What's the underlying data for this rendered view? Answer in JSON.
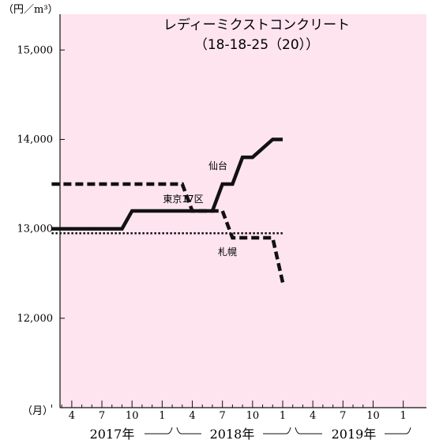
{
  "chart_data": {
    "type": "line",
    "title": "レディーミクストコンクリート",
    "subtitle": "（18-18-25（20））",
    "ylabel": "（円／m³）",
    "xlabel": "（月）",
    "ylim": [
      11000,
      15400
    ],
    "yticks": [
      12000,
      13000,
      14000,
      15000
    ],
    "ytick_labels": [
      "12,000",
      "13,000",
      "14,000",
      "15,000"
    ],
    "xlim": [
      1,
      33.4
    ],
    "x_month_ticks": [
      {
        "x": 4,
        "label": "4"
      },
      {
        "x": 7,
        "label": "7"
      },
      {
        "x": 10,
        "label": "10"
      },
      {
        "x": 13,
        "label": "1"
      },
      {
        "x": 16,
        "label": "4"
      },
      {
        "x": 19,
        "label": "7"
      },
      {
        "x": 22,
        "label": "10"
      },
      {
        "x": 25,
        "label": "1"
      },
      {
        "x": 28,
        "label": "4"
      },
      {
        "x": 31,
        "label": "7"
      },
      {
        "x": 34,
        "label": "10"
      },
      {
        "x": 37,
        "label": "1"
      }
    ],
    "x_minor_ticks": [
      2,
      3,
      5,
      6,
      8,
      9,
      11,
      12,
      14,
      15,
      17,
      18,
      20,
      21,
      23,
      24,
      26,
      27,
      29,
      30,
      32,
      33
    ],
    "year_labels": [
      {
        "label": "2017年",
        "from": 1,
        "to": 12
      },
      {
        "label": "2018年",
        "from": 13,
        "to": 24
      },
      {
        "label": "2019年",
        "from": 25,
        "to": 37
      }
    ],
    "grid": false,
    "legend": "inline labels",
    "background": "#fde4ef",
    "series": [
      {
        "name": "東京17区",
        "style": "solid",
        "x": [
          2,
          9,
          10,
          17,
          18,
          19,
          20,
          21,
          22,
          24,
          25
        ],
        "y": [
          13000,
          13000,
          13200,
          13200,
          13200,
          13500,
          13500,
          13800,
          13800,
          14000,
          14000
        ]
      },
      {
        "name": "仙台",
        "style": "dashed",
        "x": [
          2,
          15,
          16,
          17,
          18,
          19,
          20,
          21,
          22,
          23,
          24,
          25
        ],
        "y": [
          13500,
          13500,
          13200,
          13200,
          13200,
          13200,
          12900,
          12900,
          12900,
          12900,
          12900,
          12400
        ]
      },
      {
        "name": "札幌",
        "style": "dotted",
        "x": [
          2,
          25
        ],
        "y": [
          12950,
          12950
        ]
      }
    ]
  }
}
